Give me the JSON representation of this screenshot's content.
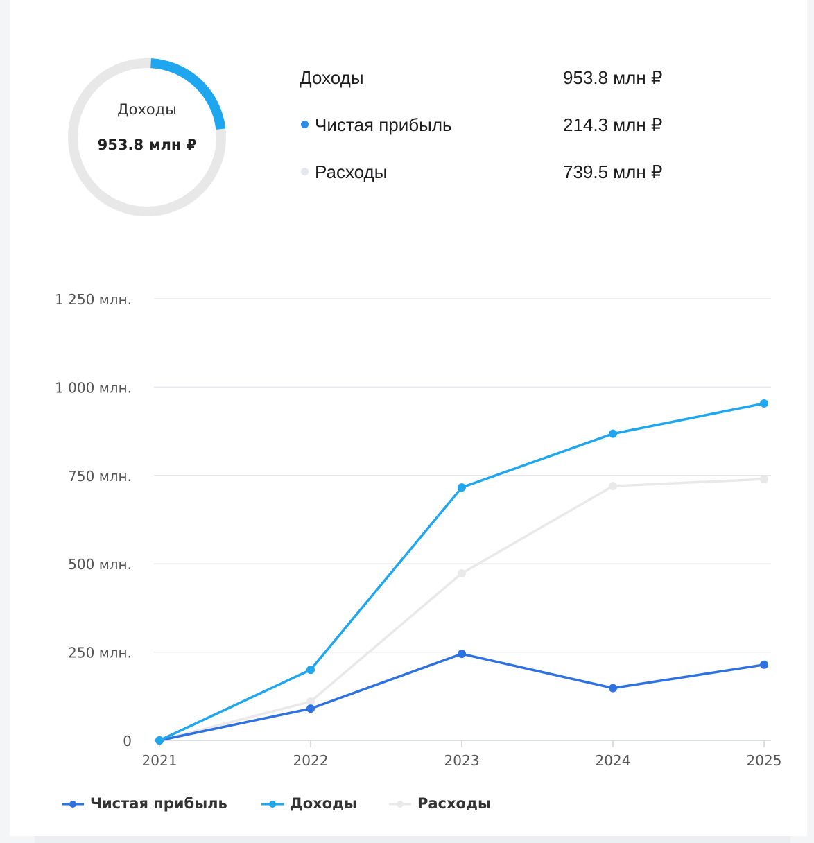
{
  "summary": {
    "donut_label": "Доходы",
    "donut_value": "953.8 млн ₽",
    "rows": [
      {
        "label": "Доходы",
        "value": "953.8 млн ₽",
        "dot": false,
        "dot_color": ""
      },
      {
        "label": "Чистая прибыль",
        "value": "214.3 млн ₽",
        "dot": true,
        "dot_color": "#2b8be8"
      },
      {
        "label": "Расходы",
        "value": "739.5 млн ₽",
        "dot": true,
        "dot_color": "#e4e8ee"
      }
    ],
    "donut_highlight_fraction": 0.224,
    "donut_colors": {
      "track": "#e8e8e8",
      "highlight": "#1ea6ef"
    }
  },
  "chart_data": {
    "type": "line",
    "categories": [
      "2021",
      "2022",
      "2023",
      "2024",
      "2025"
    ],
    "y_ticks": [
      {
        "value": 0,
        "label": "0"
      },
      {
        "value": 250,
        "label": "250 млн."
      },
      {
        "value": 500,
        "label": "500 млн."
      },
      {
        "value": 750,
        "label": "750 млн."
      },
      {
        "value": 1000,
        "label": "1 000 млн."
      },
      {
        "value": 1250,
        "label": "1 250 млн."
      }
    ],
    "ylim": [
      0,
      1250
    ],
    "grid": true,
    "legend_position": "bottom-left",
    "series": [
      {
        "name": "Расходы",
        "color": "#e9e9e9",
        "values": [
          0,
          110,
          473,
          720,
          739.5
        ]
      },
      {
        "name": "Чистая прибыль",
        "color": "#2e71e0",
        "values": [
          0,
          90,
          245,
          148,
          214.3
        ]
      },
      {
        "name": "Доходы",
        "color": "#1ea6ef",
        "values": [
          0,
          200,
          716,
          868,
          953.8
        ]
      }
    ],
    "legend": [
      {
        "name": "Чистая прибыль",
        "color": "#2e71e0"
      },
      {
        "name": "Доходы",
        "color": "#1ea6ef"
      },
      {
        "name": "Расходы",
        "color": "#e9e9e9"
      }
    ]
  }
}
